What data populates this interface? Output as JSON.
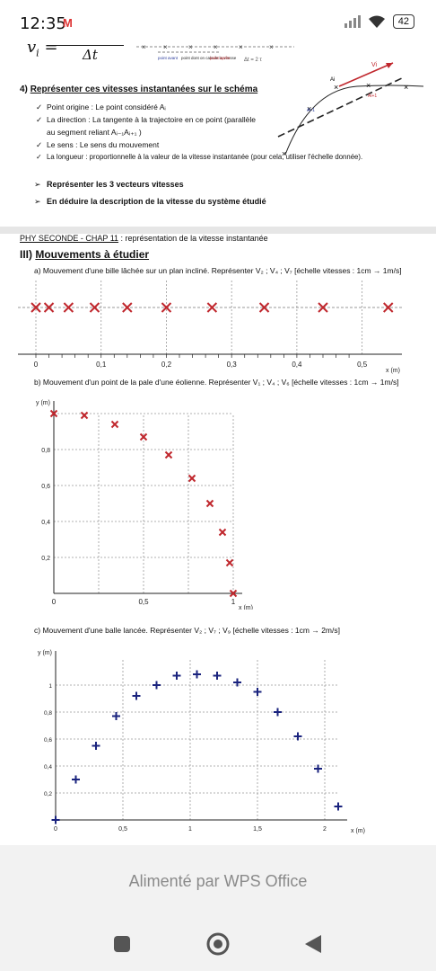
{
  "status_bar": {
    "time": "12:35",
    "mail_icon": "M",
    "battery": "42"
  },
  "page1": {
    "formula_lhs": "v",
    "formula_sub": "i",
    "formula_eq": "=",
    "formula_den": "Δt",
    "diagram_labels": [
      "point avant",
      "point dont on calcule la vitesse",
      "point après"
    ],
    "delta_label": "Δt = 2 τ",
    "traj_labels": {
      "ai": "Ai",
      "aprev": "Ai-1",
      "anext": "Ai+1",
      "vi": "Vi"
    },
    "section4_num": "4)",
    "section4_title": "Représenter ces vitesses instantanées sur le schéma",
    "bullets": [
      "Point origine : Le point considéré Aᵢ",
      "La direction : La tangente à la trajectoire en ce point (parallèle",
      "au segment reliant Aᵢ₋₁Aᵢ₊₁ )",
      "Le sens : Le sens du mouvement",
      "La longueur : proportionnelle à la valeur de la vitesse instantanée (pour cela, utiliser l'échelle donnée)."
    ],
    "tasks": [
      "Représenter les 3 vecteurs vitesses",
      "En déduire la description de la vitesse du système étudié"
    ]
  },
  "page2": {
    "header_chap": "PHY SECONDE - CHAP 11",
    "header_rest": " : représentation de la vitesse instantanée",
    "section3_num": "III)",
    "section3_title": "Mouvements à étudier",
    "qa": "a)  Mouvement d'une bille lâchée sur un plan incliné. Représenter V₂ ; V₄ ; V₇ [échelle vitesses : 1cm → 1m/s]",
    "qb": "b)  Mouvement d'un point de la pale d'une éolienne. Représenter V₁ ; V₄ ; V₆ [échelle vitesses : 1cm → 1m/s]",
    "qc": "c)  Mouvement d'une balle lancée. Représenter V₂ ; V₇ ; V₉ [échelle vitesses : 1cm → 2m/s]"
  },
  "chart_data": [
    {
      "type": "scatter",
      "name": "chart-a",
      "xlabel": "x (m)",
      "ylabel": "",
      "xlim": [
        0,
        0.55
      ],
      "xticks": [
        "0",
        "0,1",
        "0,2",
        "0,3",
        "0,4",
        "0,5"
      ],
      "marker_color": "#c0272d",
      "x": [
        0.0,
        0.02,
        0.05,
        0.09,
        0.14,
        0.2,
        0.27,
        0.35,
        0.44,
        0.54
      ],
      "y": [
        0,
        0,
        0,
        0,
        0,
        0,
        0,
        0,
        0,
        0
      ]
    },
    {
      "type": "scatter",
      "name": "chart-b",
      "xlabel": "x (m)",
      "ylabel": "y (m)",
      "xlim": [
        0,
        1
      ],
      "ylim": [
        0,
        1
      ],
      "xticks": [
        "0",
        "0,5",
        "1"
      ],
      "yticks": [
        "0,2",
        "0,4",
        "0,6",
        "0,8"
      ],
      "marker_color": "#c0272d",
      "x": [
        0.0,
        0.17,
        0.34,
        0.5,
        0.64,
        0.77,
        0.87,
        0.94,
        0.98,
        1.0
      ],
      "y": [
        1.0,
        0.99,
        0.94,
        0.87,
        0.77,
        0.64,
        0.5,
        0.34,
        0.17,
        0.0
      ]
    },
    {
      "type": "scatter",
      "name": "chart-c",
      "xlabel": "x (m)",
      "ylabel": "y (m)",
      "xlim": [
        0,
        2.1
      ],
      "ylim": [
        0,
        1.2
      ],
      "xticks": [
        "0",
        "0,5",
        "1",
        "1,5",
        "2"
      ],
      "yticks": [
        "0,2",
        "0,4",
        "0,6",
        "0,8",
        "1"
      ],
      "marker_color": "#1a237e",
      "x": [
        0.0,
        0.15,
        0.3,
        0.45,
        0.6,
        0.75,
        0.9,
        1.05,
        1.2,
        1.35,
        1.5,
        1.65,
        1.8,
        1.95,
        2.1
      ],
      "y": [
        0.0,
        0.3,
        0.55,
        0.77,
        0.92,
        1.0,
        1.07,
        1.08,
        1.07,
        1.02,
        0.95,
        0.8,
        0.62,
        0.38,
        0.1
      ]
    }
  ],
  "footer": {
    "powered_by": "Alimenté par WPS Office"
  }
}
